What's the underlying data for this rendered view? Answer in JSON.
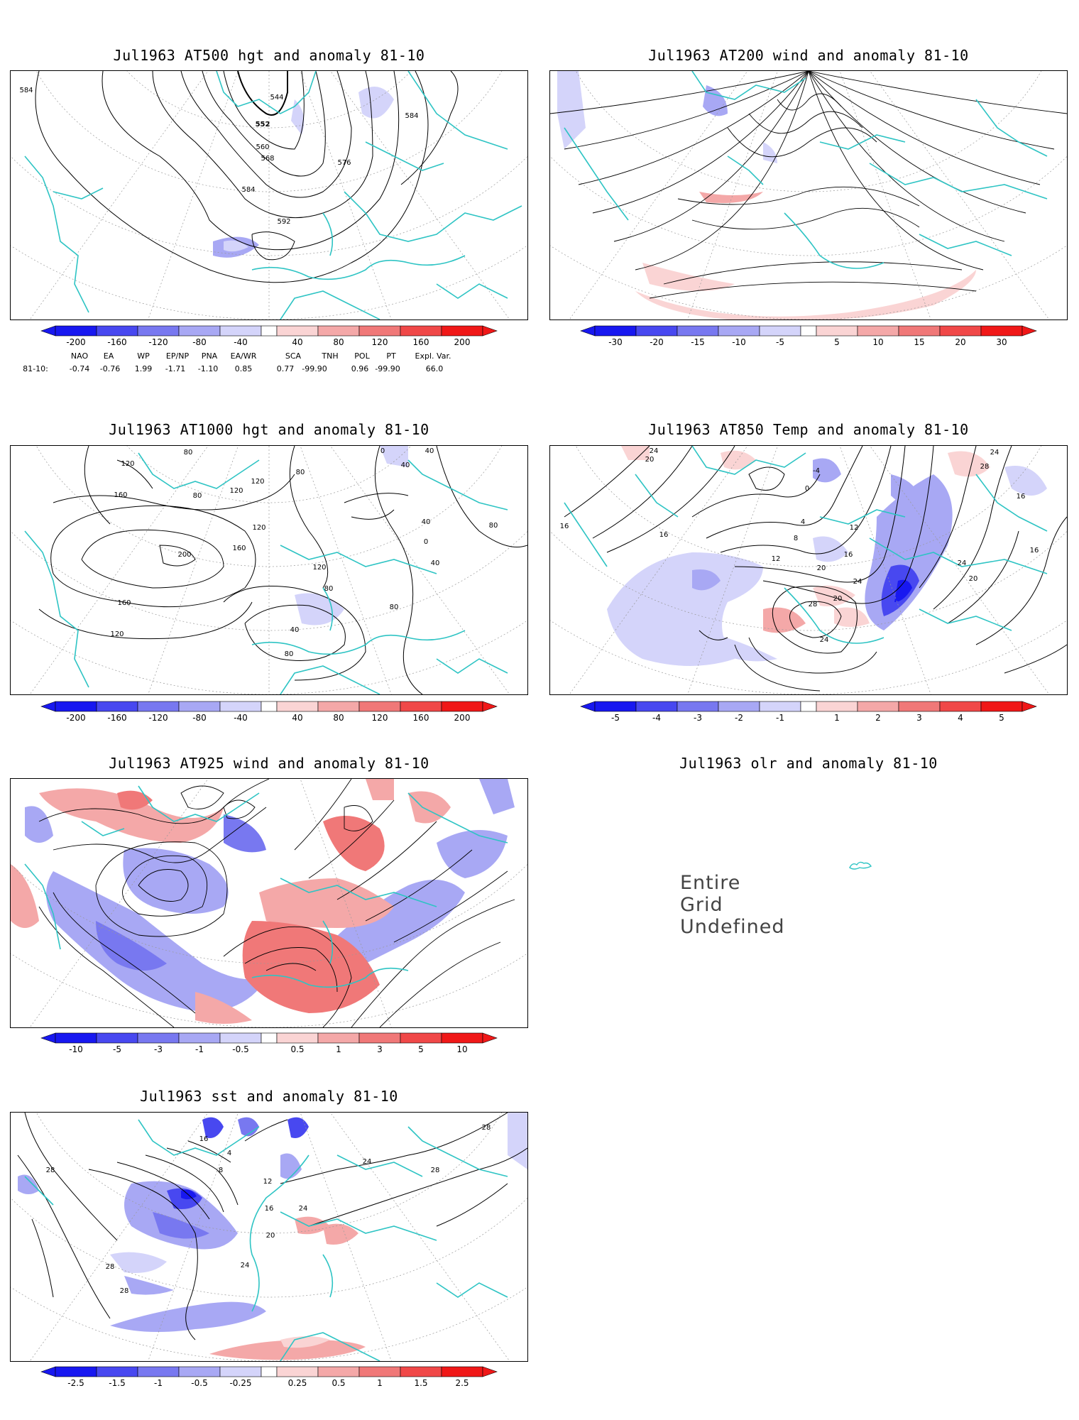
{
  "panels": [
    {
      "id": "p500",
      "title": "Jul1963 AT500 hgt and anomaly 81-10",
      "contour_labels": [
        "584",
        "544",
        "552",
        "560",
        "568",
        "576",
        "584",
        "584",
        "592"
      ],
      "colorbar": [
        "-200",
        "-160",
        "-120",
        "-80",
        "-40",
        "40",
        "80",
        "120",
        "160",
        "200"
      ],
      "teleconnections": {
        "row_label": "81-10:",
        "headers": [
          "NAO",
          "EA",
          "WP",
          "EP/NP",
          "PNA",
          "EA/WR",
          "SCA",
          "TNH",
          "POL",
          "PT",
          "Expl. Var."
        ],
        "values": [
          "-0.74",
          "-0.76",
          "1.99",
          "-1.71",
          "-1.10",
          "0.85",
          "0.77",
          "-99.90",
          "0.96",
          "-99.90",
          "66.0"
        ]
      }
    },
    {
      "id": "p200",
      "title": "Jul1963 AT200 wind and anomaly 81-10",
      "colorbar": [
        "-30",
        "-20",
        "-15",
        "-10",
        "-5",
        "5",
        "10",
        "15",
        "20",
        "30"
      ]
    },
    {
      "id": "p1000",
      "title": "Jul1963 AT1000 hgt and anomaly 81-10",
      "contour_labels": [
        "80",
        "120",
        "160",
        "80",
        "120",
        "120",
        "0",
        "40",
        "40",
        "80",
        "200",
        "120",
        "160",
        "40",
        "0",
        "80",
        "40",
        "120",
        "80",
        "160",
        "80",
        "120",
        "40",
        "80"
      ],
      "colorbar": [
        "-200",
        "-160",
        "-120",
        "-80",
        "-40",
        "40",
        "80",
        "120",
        "160",
        "200"
      ]
    },
    {
      "id": "p850",
      "title": "Jul1963 AT850 Temp and anomaly 81-10",
      "contour_labels": [
        "24",
        "20",
        "-4",
        "0",
        "24",
        "28",
        "16",
        "4",
        "8",
        "12",
        "16",
        "16",
        "12",
        "20",
        "24",
        "28",
        "20",
        "24",
        "20",
        "24",
        "16",
        "16"
      ],
      "colorbar": [
        "-5",
        "-4",
        "-3",
        "-2",
        "-1",
        "1",
        "2",
        "3",
        "4",
        "5"
      ]
    },
    {
      "id": "p925",
      "title": "Jul1963 AT925 wind and anomaly 81-10",
      "colorbar": [
        "-10",
        "-5",
        "-3",
        "-1",
        "-0.5",
        "0.5",
        "1",
        "3",
        "5",
        "10"
      ]
    },
    {
      "id": "polr",
      "title": "Jul1963 olr and anomaly 81-10",
      "message": "Entire Grid Undefined"
    },
    {
      "id": "psst",
      "title": "Jul1963 sst and anomaly 81-10",
      "contour_labels": [
        "16",
        "4",
        "8",
        "12",
        "16",
        "20",
        "24",
        "28",
        "28",
        "28",
        "24",
        "24",
        "28",
        "28"
      ],
      "colorbar": [
        "-2.5",
        "-1.5",
        "-1",
        "-0.5",
        "-0.25",
        "0.25",
        "0.5",
        "1",
        "1.5",
        "2.5"
      ]
    }
  ],
  "colors": {
    "coast": "#2ec4c4",
    "blue": [
      "#1818f0",
      "#4848f0",
      "#7878f0",
      "#a8a8f4",
      "#d4d4fa"
    ],
    "red": [
      "#fad4d4",
      "#f4a8a8",
      "#f07878",
      "#f04848",
      "#f01818"
    ]
  }
}
